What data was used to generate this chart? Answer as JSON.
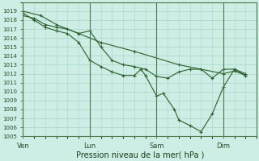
{
  "title": "",
  "xlabel": "Pression niveau de la mer( hPa )",
  "ylabel": "",
  "background_color": "#cceee4",
  "grid_color": "#aad4c8",
  "line_color": "#2d5e2d",
  "ylim": [
    1005,
    1020
  ],
  "yticks": [
    1005,
    1006,
    1007,
    1008,
    1009,
    1010,
    1011,
    1012,
    1013,
    1014,
    1015,
    1016,
    1017,
    1018,
    1019
  ],
  "xtick_labels": [
    "Ven",
    "Lun",
    "Sam",
    "Dim"
  ],
  "xtick_positions": [
    0,
    3.0,
    6.0,
    9.0
  ],
  "xlim": [
    0,
    10.5
  ],
  "series1_x": [
    0.0,
    0.8,
    1.5,
    2.5,
    3.5,
    5.0,
    7.0,
    9.0,
    9.5,
    10.0
  ],
  "series1_y": [
    1019.0,
    1018.5,
    1017.5,
    1016.5,
    1015.5,
    1014.5,
    1013.0,
    1012.0,
    1012.3,
    1011.8
  ],
  "series2_x": [
    0.0,
    0.5,
    1.0,
    1.5,
    2.0,
    2.5,
    3.0,
    3.5,
    4.0,
    4.5,
    5.0,
    5.5,
    6.0,
    6.5,
    7.0,
    7.5,
    8.0,
    8.5,
    9.0,
    9.5,
    10.0
  ],
  "series2_y": [
    1018.5,
    1018.2,
    1017.5,
    1017.2,
    1017.0,
    1016.5,
    1016.8,
    1015.0,
    1013.5,
    1013.0,
    1012.8,
    1012.5,
    1011.7,
    1011.5,
    1012.2,
    1012.5,
    1012.5,
    1011.5,
    1012.5,
    1012.5,
    1012.0
  ],
  "series3_x": [
    0.0,
    0.5,
    1.0,
    1.5,
    2.0,
    2.5,
    3.0,
    3.5,
    4.0,
    4.5,
    5.0,
    5.3,
    5.5,
    6.0,
    6.3,
    6.8,
    7.0,
    7.5,
    8.0,
    8.5,
    9.0,
    9.5,
    10.0
  ],
  "series3_y": [
    1018.8,
    1018.0,
    1017.2,
    1016.8,
    1016.5,
    1015.5,
    1013.5,
    1012.8,
    1012.2,
    1011.8,
    1011.8,
    1012.5,
    1011.8,
    1009.5,
    1009.8,
    1008.0,
    1006.8,
    1006.2,
    1005.5,
    1007.5,
    1010.5,
    1012.5,
    1011.8
  ],
  "vline_positions": [
    0,
    3.0,
    6.0,
    9.0
  ],
  "marker": "+",
  "linewidth": 0.8,
  "markersize": 3.5
}
